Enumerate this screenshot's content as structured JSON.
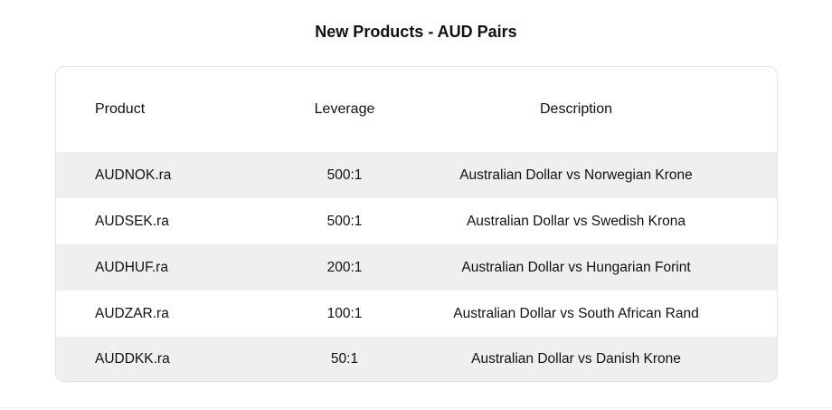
{
  "title": "New Products - AUD Pairs",
  "table": {
    "headers": [
      "Product",
      "Leverage",
      "Description"
    ],
    "rows": [
      [
        "AUDNOK.ra",
        "500:1",
        "Australian Dollar vs Norwegian Krone"
      ],
      [
        "AUDSEK.ra",
        "500:1",
        "Australian Dollar vs Swedish Krona"
      ],
      [
        "AUDHUF.ra",
        "200:1",
        "Australian Dollar vs Hungarian Forint"
      ],
      [
        "AUDZAR.ra",
        "100:1",
        "Australian Dollar vs South African Rand"
      ],
      [
        "AUDDKK.ra",
        "50:1",
        "Australian Dollar vs Danish Krone"
      ]
    ]
  },
  "colors": {
    "shaded_row": "#efefef",
    "border": "#e2e2e2"
  }
}
